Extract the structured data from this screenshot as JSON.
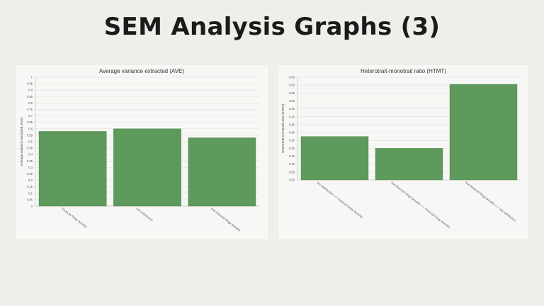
{
  "page": {
    "title": "SEM Analysis Graphs (3)"
  },
  "colors": {
    "bar": "#5e9a5b",
    "bar_edge": "#4f8a4c",
    "grid": "#dcdcd8",
    "axis": "#b5b5b0"
  },
  "chart_data": [
    {
      "type": "bar",
      "title": "Average variance extracted (AVE)",
      "ylabel": "Average variance extracted (AVE)",
      "categories": [
        "Financial fringe benefits",
        "Job satisfaction",
        "Non-financial fringe benefits"
      ],
      "values": [
        0.58,
        0.6,
        0.53
      ],
      "ylim": [
        0,
        1
      ],
      "yticks": [
        "0",
        "0.05",
        "0.1",
        "0.15",
        "0.2",
        "0.25",
        "0.3",
        "0.35",
        "0.4",
        "0.45",
        "0.5",
        "0.55",
        "0.6",
        "0.65",
        "0.7",
        "0.75",
        "0.8",
        "0.85",
        "0.9",
        "0.95",
        "1"
      ],
      "grid": true
    },
    {
      "type": "bar",
      "title": "Heterotrait-monotrait ratio (HTMT)",
      "ylabel": "Heterotrait-monotrait ratio (HTMT)",
      "categories": [
        "Job satisfaction <-> Financial fringe benefits",
        "Non-financial fringe benefits <-> Financial fringe benefits",
        "Non-financial fringe benefits <-> Job satisfaction"
      ],
      "values": [
        0.275,
        0.2,
        0.605
      ],
      "ylim": [
        0,
        0.65
      ],
      "yticks": [
        "0.00",
        "0.05",
        "0.10",
        "0.15",
        "0.20",
        "0.25",
        "0.30",
        "0.35",
        "0.40",
        "0.45",
        "0.50",
        "0.55",
        "0.60",
        "0.65"
      ],
      "grid": true
    }
  ]
}
